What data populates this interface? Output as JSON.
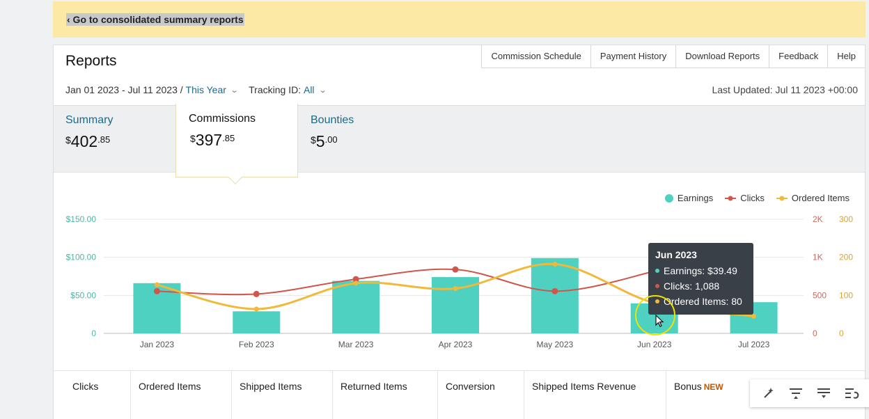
{
  "banner": {
    "link_label": "‹ Go to consolidated summary reports"
  },
  "header": {
    "title": "Reports",
    "tabs": [
      "Commission Schedule",
      "Payment History",
      "Download Reports",
      "Feedback",
      "Help"
    ],
    "date_range": "Jan 01 2023 - Jul 11 2023 /",
    "period": "This Year",
    "tracking_label": "Tracking ID:",
    "tracking_value": "All",
    "last_updated": "Last Updated: Jul 11 2023 +00:00"
  },
  "summary": {
    "summary": {
      "label": "Summary",
      "currency": "$",
      "whole": "402",
      "cents": ".85"
    },
    "commissions": {
      "label": "Commissions",
      "currency": "$",
      "whole": "397",
      "cents": ".85"
    },
    "bounties": {
      "label": "Bounties",
      "currency": "$",
      "whole": "5",
      "cents": ".00"
    }
  },
  "colors": {
    "earnings": "#4fd1c1",
    "clicks": "#d0554a",
    "ordered_items": "#f0b93a",
    "link": "#1a6a8c",
    "tooltip_bg": "#394047"
  },
  "chart_data": {
    "type": "bar",
    "categories": [
      "Jan 2023",
      "Feb 2023",
      "Mar 2023",
      "Apr 2023",
      "May 2023",
      "Jun 2023",
      "Jul 2023"
    ],
    "series": [
      {
        "name": "Earnings",
        "type": "bar",
        "axis": "left",
        "values": [
          66,
          29,
          69,
          74,
          99,
          39.49,
          41
        ]
      },
      {
        "name": "Clicks",
        "type": "line",
        "axis": "right-1",
        "values": [
          740,
          690,
          950,
          1120,
          740,
          1088,
          null
        ]
      },
      {
        "name": "Ordered Items",
        "type": "line",
        "axis": "right-2",
        "values": [
          128,
          64,
          132,
          118,
          182,
          80,
          45
        ]
      }
    ],
    "y_left": {
      "ticks": [
        "$150.00",
        "$100.00",
        "$50.00",
        "0"
      ],
      "range": [
        0,
        150
      ]
    },
    "y_right_1": {
      "ticks": [
        "2K",
        "1K",
        "500",
        "0"
      ],
      "range": [
        0,
        2000
      ]
    },
    "y_right_2": {
      "ticks": [
        "300",
        "200",
        "100",
        "0"
      ],
      "range": [
        0,
        300
      ]
    },
    "legend": [
      "Earnings",
      "Clicks",
      "Ordered Items"
    ],
    "legend_position": "top-right",
    "grid": true
  },
  "tooltip": {
    "title": "Jun 2023",
    "earnings": "Earnings: $39.49",
    "clicks": "Clicks: 1,088",
    "ordered": "Ordered Items: 80"
  },
  "table": {
    "headers": [
      "Clicks",
      "Ordered Items",
      "Shipped Items",
      "Returned Items",
      "Conversion",
      "Shipped Items Revenue",
      "Bonus"
    ],
    "bonus_badge": "NEW"
  },
  "toolbar": {
    "icons": [
      "magic-wand-icon",
      "align-top-icon",
      "align-bottom-icon",
      "redo-icon"
    ]
  }
}
